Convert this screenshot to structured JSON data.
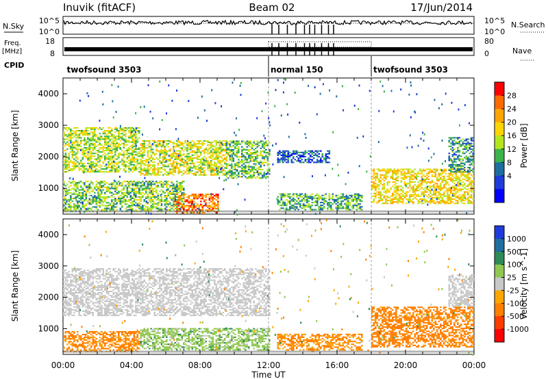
{
  "header": {
    "station": "Inuvik (fitACF)",
    "beam": "Beam 02",
    "date": "17/Jun/2014"
  },
  "top_strip": {
    "left_nsky": "N.Sky",
    "left_freq": "Freq.",
    "left_freq_unit": "[MHz]",
    "left_cpid": "CPID",
    "right_nsearch": "N.Search",
    "right_nave": "Nave",
    "noise_ticks": [
      "10^5",
      "10^0"
    ],
    "noise_ticks_right": [
      "10^5",
      "10^0"
    ],
    "freq_ticks": [
      "18",
      "8"
    ],
    "nave_ticks": [
      "80",
      "0"
    ],
    "cpid_labels": [
      {
        "text": "twofsound 3503",
        "hour": 0.1
      },
      {
        "text": "normal 150",
        "hour": 12.0
      },
      {
        "text": "twofsound 3503",
        "hour": 18.0
      }
    ]
  },
  "chart_data": [
    {
      "type": "heatmap",
      "title": "",
      "ylabel": "Slant Range [km]",
      "xlim_hours": [
        0,
        24
      ],
      "ylim_km": [
        180,
        4500
      ],
      "yticks": [
        "1000",
        "2000",
        "3000",
        "4000"
      ],
      "colorbar_label": "Power [dB]",
      "colorbar_ticks": [
        "28",
        "24",
        "20",
        "16",
        "12",
        "8",
        "4"
      ],
      "colorbar_colors": [
        "#ff0000",
        "#ff6a00",
        "#ffa500",
        "#ffd400",
        "#b4e61e",
        "#3cb44b",
        "#1e6ea0",
        "#1e3cdc",
        "#0000ff"
      ],
      "bands": [
        {
          "t0": 0.0,
          "t1": 4.5,
          "r0": 1500,
          "r1": 2900,
          "value": 16
        },
        {
          "t0": 4.5,
          "t1": 9.5,
          "r0": 1400,
          "r1": 2500,
          "value": 18
        },
        {
          "t0": 9.5,
          "t1": 12.0,
          "r0": 1300,
          "r1": 2500,
          "value": 13
        },
        {
          "t0": 0.0,
          "t1": 7.0,
          "r0": 250,
          "r1": 1200,
          "value": 14
        },
        {
          "t0": 6.5,
          "t1": 9.0,
          "r0": 200,
          "r1": 800,
          "value": 27
        },
        {
          "t0": 12.5,
          "t1": 17.5,
          "r0": 300,
          "r1": 800,
          "value": 12
        },
        {
          "t0": 12.5,
          "t1": 15.5,
          "r0": 1800,
          "r1": 2200,
          "value": 6
        },
        {
          "t0": 18.0,
          "t1": 24.0,
          "r0": 500,
          "r1": 1600,
          "value": 20
        },
        {
          "t0": 22.5,
          "t1": 24.0,
          "r0": 1500,
          "r1": 2600,
          "value": 10
        }
      ]
    },
    {
      "type": "heatmap",
      "title": "",
      "ylabel": "Slant Range [km]",
      "xlabel": "Time UT",
      "xlim_hours": [
        0,
        24
      ],
      "ylim_km": [
        180,
        4500
      ],
      "yticks": [
        "1000",
        "2000",
        "3000",
        "4000"
      ],
      "xticks": [
        "00:00",
        "04:00",
        "08:00",
        "12:00",
        "16:00",
        "20:00",
        "00:00"
      ],
      "colorbar_label": "Velocity [m s^-1]",
      "colorbar_ticks": [
        "1000",
        "500",
        "100",
        "25",
        "-25",
        "-100",
        "-500",
        "-1000"
      ],
      "colorbar_colors": [
        "#1e3cdc",
        "#1e6ea0",
        "#2e8b57",
        "#90c850",
        "#c8c8c8",
        "#ffa500",
        "#ff7f00",
        "#ff3c00",
        "#ff0000"
      ],
      "bands": [
        {
          "t0": 0.0,
          "t1": 12.0,
          "r0": 1400,
          "r1": 2900,
          "value": 0
        },
        {
          "t0": 0.0,
          "t1": 4.5,
          "r0": 250,
          "r1": 900,
          "value": -150
        },
        {
          "t0": 4.5,
          "t1": 12.0,
          "r0": 300,
          "r1": 1000,
          "value": 60
        },
        {
          "t0": 12.5,
          "t1": 17.5,
          "r0": 300,
          "r1": 800,
          "value": -120
        },
        {
          "t0": 18.0,
          "t1": 24.0,
          "r0": 400,
          "r1": 1700,
          "value": -200
        },
        {
          "t0": 22.5,
          "t1": 24.0,
          "r0": 1700,
          "r1": 2700,
          "value": 0
        }
      ]
    }
  ]
}
